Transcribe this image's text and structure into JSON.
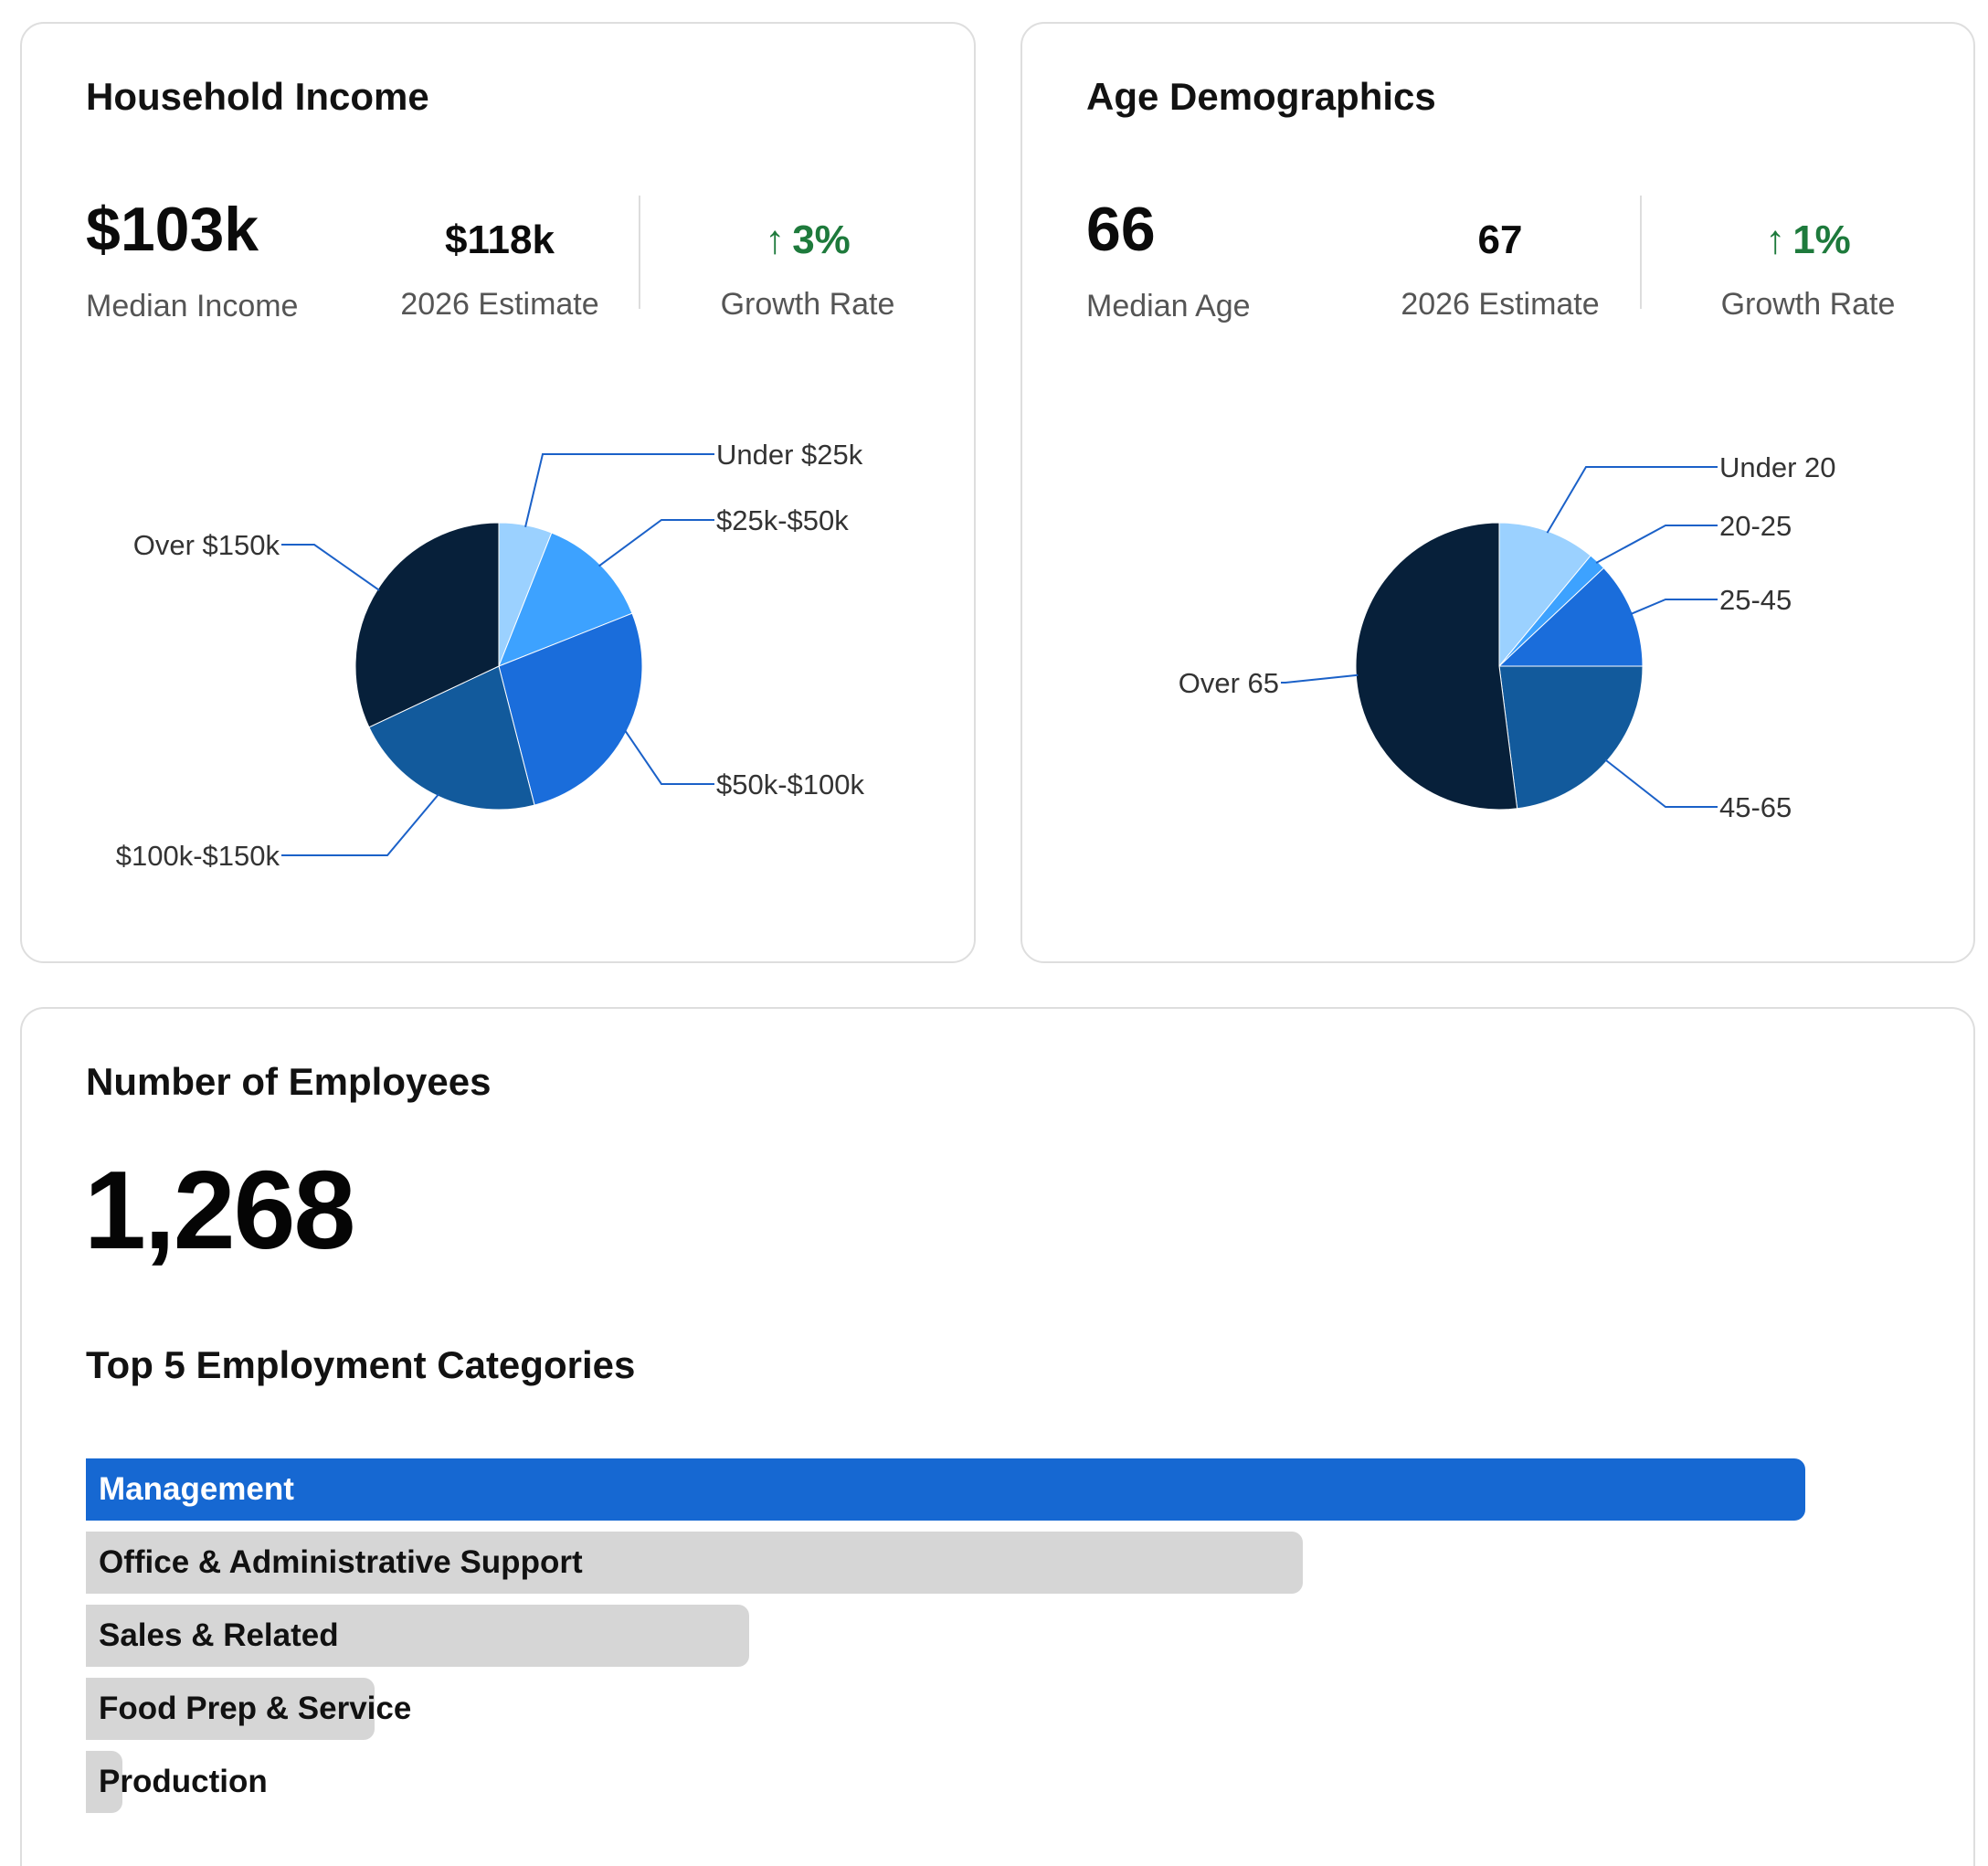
{
  "income": {
    "title": "Household Income",
    "median_value": "$103k",
    "median_label": "Median Income",
    "estimate_value": "$118k",
    "estimate_label": "2026 Estimate",
    "growth_arrow": "↑",
    "growth_value": "3%",
    "growth_label": "Growth Rate"
  },
  "age": {
    "title": "Age Demographics",
    "median_value": "66",
    "median_label": "Median Age",
    "estimate_value": "67",
    "estimate_label": "2026 Estimate",
    "growth_arrow": "↑",
    "growth_value": "1%",
    "growth_label": "Growth Rate"
  },
  "employees": {
    "title": "Number of Employees",
    "count": "1,268",
    "categories_title": "Top 5 Employment Categories"
  },
  "colors": {
    "growth_green": "#1e7a3c",
    "bar_primary": "#1668d2",
    "bar_secondary": "#d6d6d6",
    "leader_line": "#1b61c8",
    "pie_light": "#9bd1ff",
    "pie_sky": "#3da2ff",
    "pie_blue": "#1a6ddb",
    "pie_steel": "#125a9c",
    "pie_navy": "#07203a"
  },
  "chart_data": [
    {
      "type": "pie",
      "categories": [
        "Under $25k",
        "$25k-$50k",
        "$50k-$100k",
        "$100k-$150k",
        "Over $150k"
      ],
      "values": [
        6,
        13,
        27,
        22,
        32
      ],
      "colors": [
        "#9bd1ff",
        "#3da2ff",
        "#1a6ddb",
        "#125a9c",
        "#07203a"
      ]
    },
    {
      "type": "pie",
      "categories": [
        "Under 20",
        "20-25",
        "25-45",
        "45-65",
        "Over 65"
      ],
      "values": [
        11,
        2,
        12,
        23,
        52
      ],
      "colors": [
        "#9bd1ff",
        "#3da2ff",
        "#1a6ddb",
        "#125a9c",
        "#07203a"
      ]
    },
    {
      "type": "bar",
      "orientation": "horizontal",
      "categories": [
        "Management",
        "Office & Administrative Support",
        "Sales & Related",
        "Food Prep & Service",
        "Production"
      ],
      "values": [
        100,
        70.8,
        38.6,
        16.8,
        2.1
      ]
    }
  ]
}
